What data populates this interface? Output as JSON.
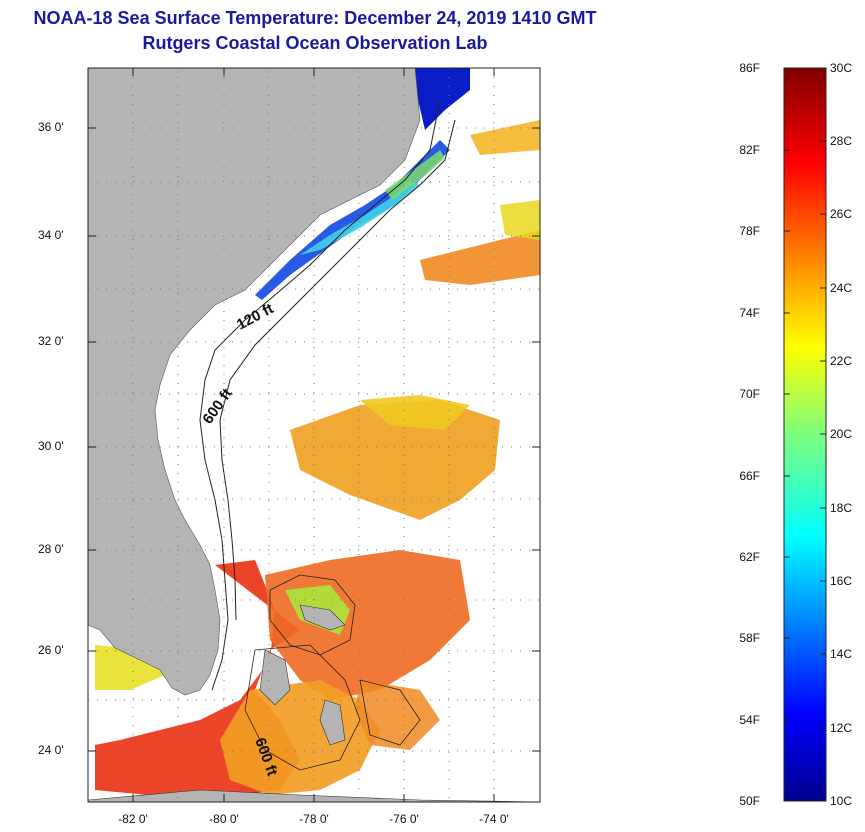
{
  "header": {
    "title": "NOAA-18 Sea Surface Temperature:  December 24, 2019 1410 GMT",
    "subtitle": "Rutgers Coastal Ocean Observation Lab"
  },
  "map": {
    "lat_ticks": [
      "36 0'",
      "34 0'",
      "32 0'",
      "30 0'",
      "28 0'",
      "26 0'",
      "24 0'"
    ],
    "lon_ticks": [
      "-82 0'",
      "-80 0'",
      "-78 0'",
      "-76 0'",
      "-74 0'"
    ],
    "contour_labels": [
      "120 ft",
      "600 ft",
      "600 ft"
    ],
    "colors": {
      "land": "#b4b4b4",
      "cloud": "#ffffff",
      "warm": "#e8331c",
      "orange": "#f28a1e",
      "cold": "#0a2cd6"
    }
  },
  "colorbar": {
    "fahrenheit": [
      "86F",
      "82F",
      "78F",
      "74F",
      "70F",
      "66F",
      "62F",
      "58F",
      "54F",
      "50F"
    ],
    "celsius": [
      "30C",
      "28C",
      "26C",
      "24C",
      "22C",
      "20C",
      "18C",
      "16C",
      "14C",
      "12C",
      "10C"
    ],
    "range_c": [
      10,
      30
    ],
    "range_f": [
      50,
      86
    ],
    "colormap": "jet"
  }
}
